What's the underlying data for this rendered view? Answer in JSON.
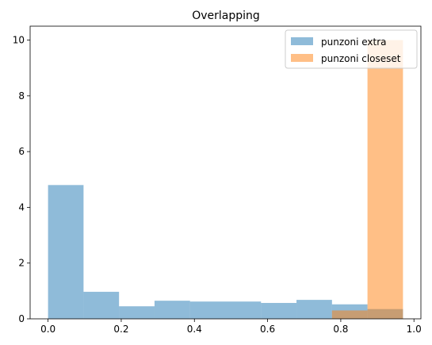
{
  "chart_data": {
    "type": "bar",
    "title": "Overlapping",
    "xlabel": "",
    "ylabel": "",
    "xlim": [
      -0.049,
      1.019
    ],
    "ylim": [
      0,
      10.5
    ],
    "xticks": [
      "0.0",
      "0.2",
      "0.4",
      "0.6",
      "0.8",
      "1.0"
    ],
    "yticks": [
      "0",
      "2",
      "4",
      "6",
      "8",
      "10"
    ],
    "grid": false,
    "legend_position": "top-right",
    "series": [
      {
        "name": "punzoni extra",
        "color": "#1f77b4",
        "opacity": 0.5,
        "bin_edges": [
          0.0,
          0.097,
          0.194,
          0.291,
          0.388,
          0.485,
          0.582,
          0.679,
          0.776,
          0.873,
          0.97
        ],
        "values": [
          4.8,
          0.97,
          0.45,
          0.65,
          0.62,
          0.62,
          0.57,
          0.68,
          0.52,
          0.35
        ]
      },
      {
        "name": "punzoni closeset",
        "color": "#ff7f0e",
        "opacity": 0.5,
        "bin_edges": [
          0.776,
          0.873,
          0.97
        ],
        "values": [
          0.3,
          10.0
        ]
      }
    ]
  }
}
